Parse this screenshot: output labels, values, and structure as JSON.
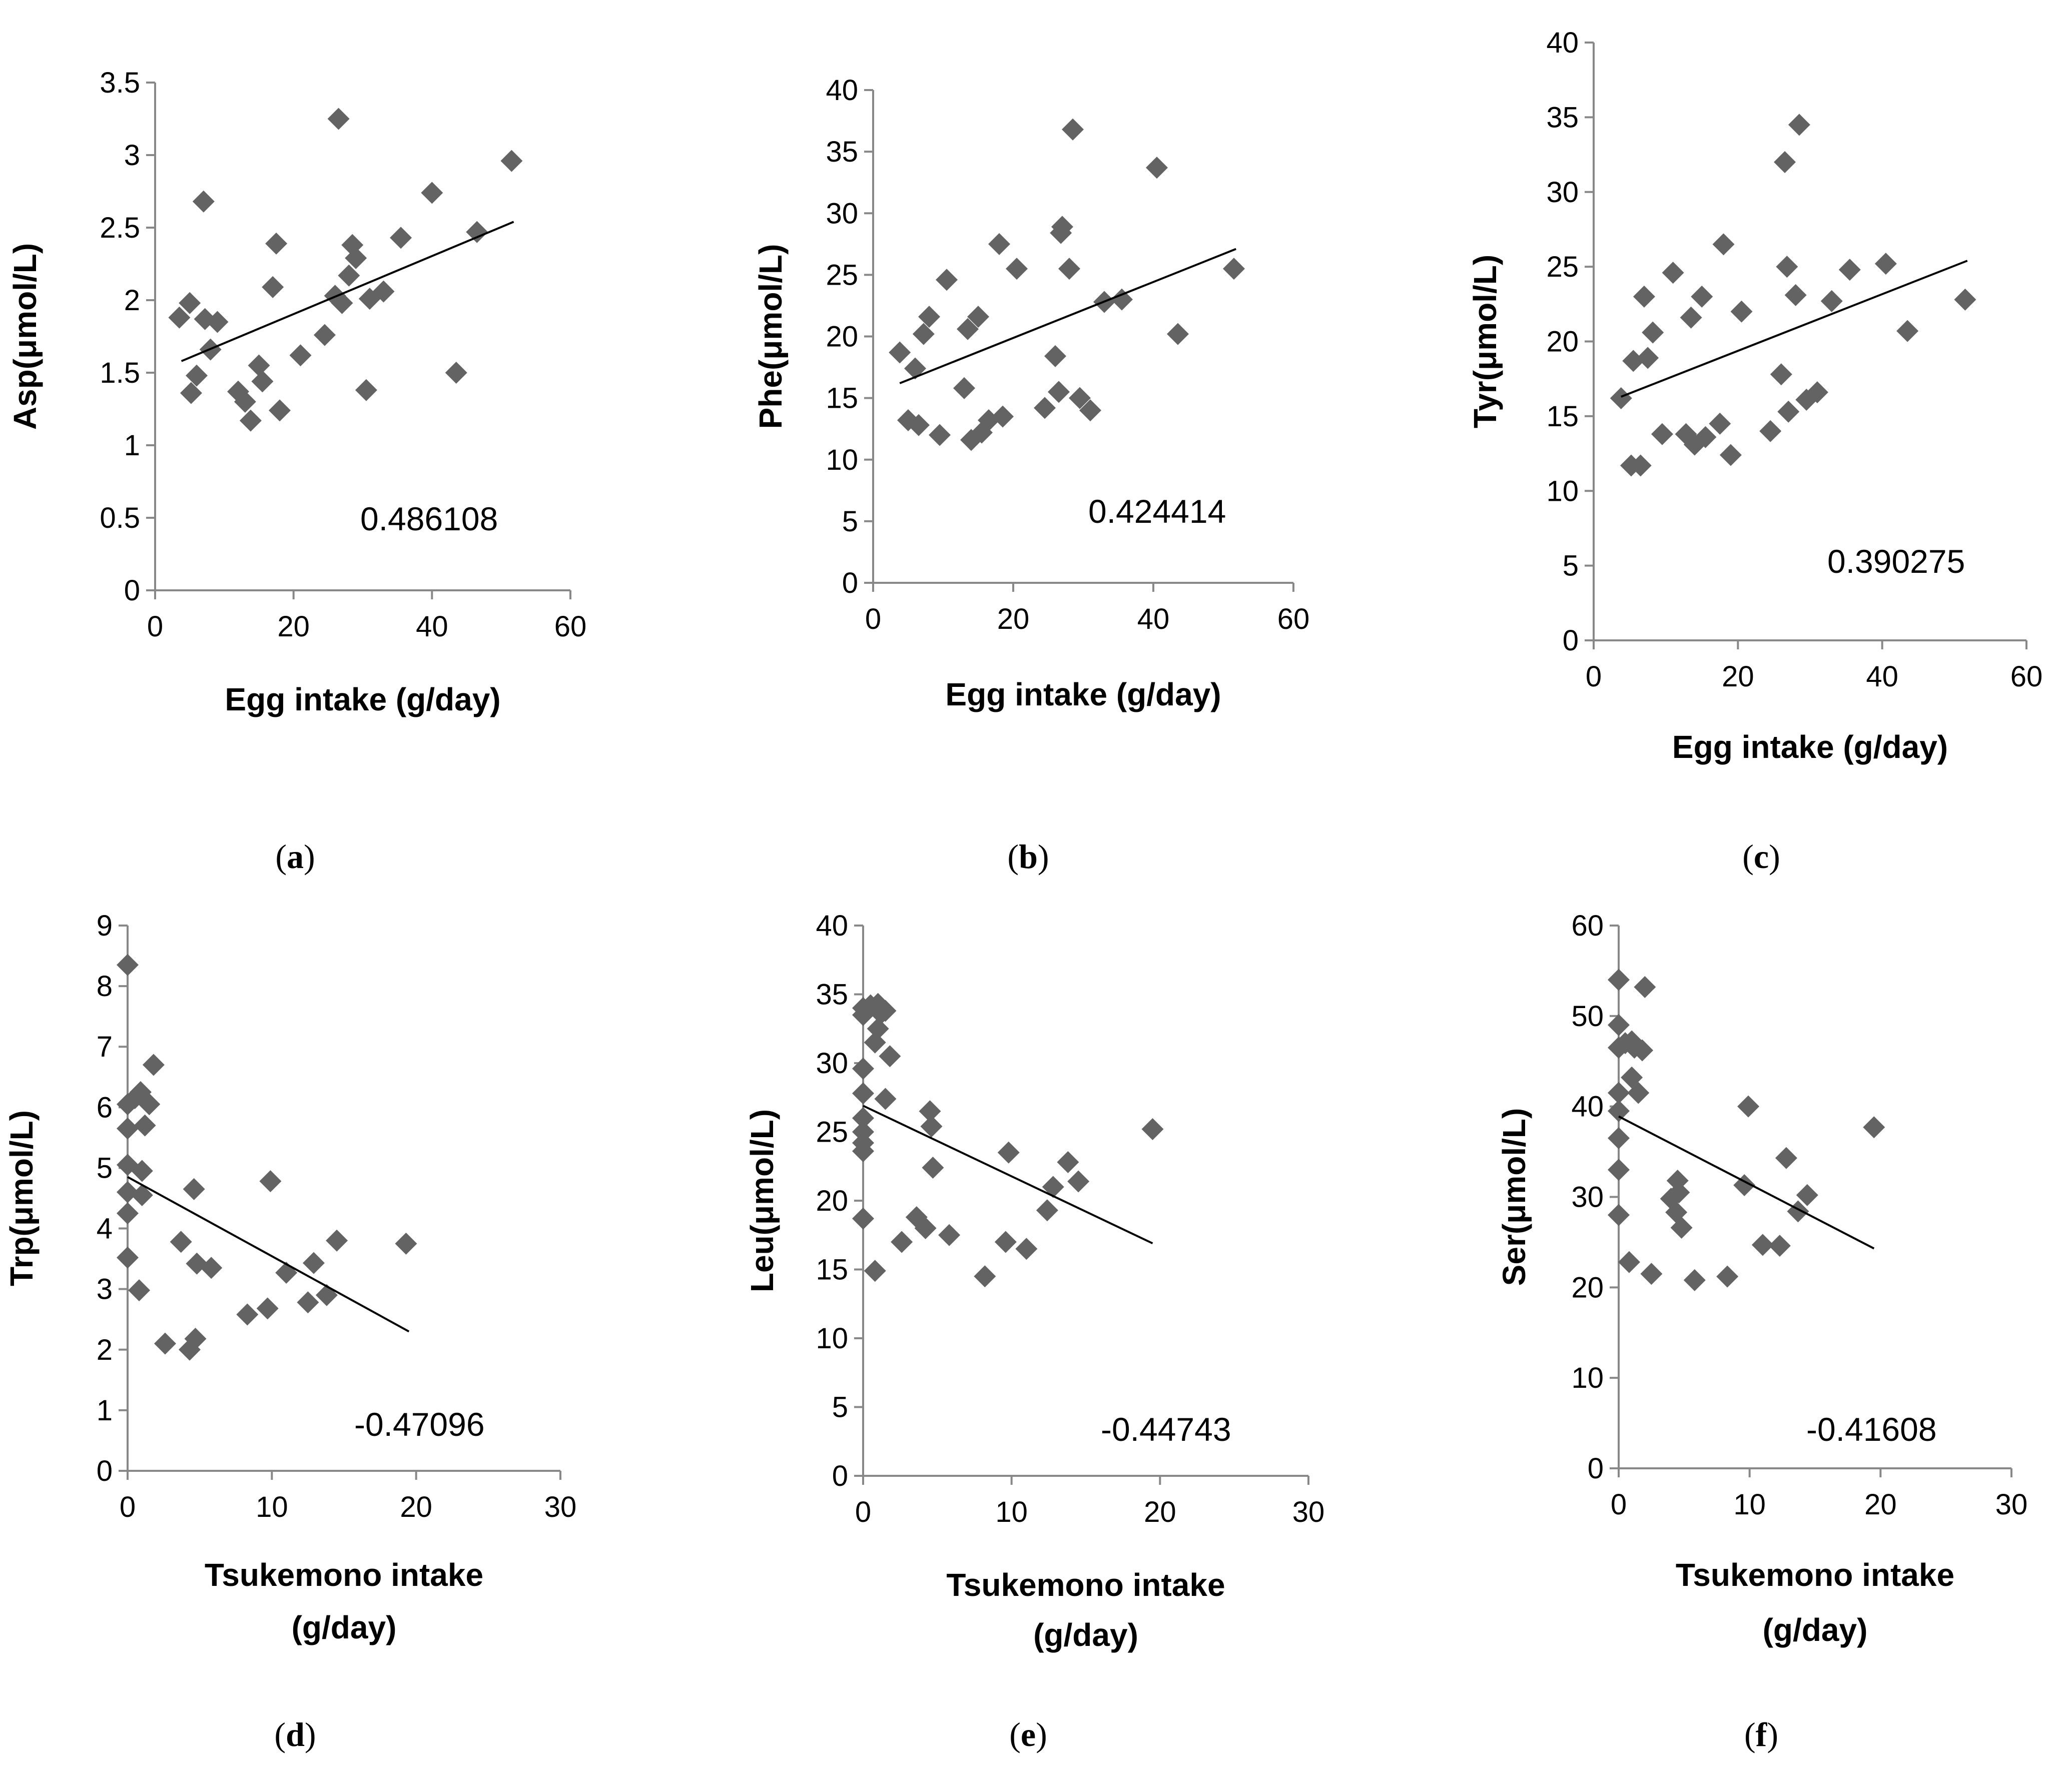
{
  "chart_data": [
    {
      "id": "a",
      "type": "scatter",
      "panel_label": "a",
      "xlabel": "Egg intake (g/day)",
      "ylabel": "Asp(μmol/L)",
      "annotation": "0.486108",
      "xlim": [
        0,
        60
      ],
      "xticks": [
        0,
        20,
        40,
        60
      ],
      "ylim": [
        0,
        3.5
      ],
      "yticks": [
        "0",
        "0.5",
        "1",
        "1.5",
        "2",
        "2.5",
        "3",
        "3.5"
      ],
      "trendline": [
        [
          3.8,
          1.58
        ],
        [
          51.8,
          2.54
        ]
      ],
      "points": [
        [
          3.5,
          1.88
        ],
        [
          5,
          1.98
        ],
        [
          5.2,
          1.36
        ],
        [
          6,
          1.48
        ],
        [
          7,
          2.68
        ],
        [
          7.2,
          1.87
        ],
        [
          8,
          1.66
        ],
        [
          9,
          1.85
        ],
        [
          12,
          1.37
        ],
        [
          13,
          1.3
        ],
        [
          13.8,
          1.17
        ],
        [
          15,
          1.55
        ],
        [
          15.5,
          1.44
        ],
        [
          17,
          2.09
        ],
        [
          17.5,
          2.39
        ],
        [
          18,
          1.24
        ],
        [
          21,
          1.62
        ],
        [
          24.5,
          1.76
        ],
        [
          26,
          2.03
        ],
        [
          26.5,
          3.25
        ],
        [
          27,
          1.98
        ],
        [
          28,
          2.17
        ],
        [
          28.5,
          2.38
        ],
        [
          29,
          2.29
        ],
        [
          30.5,
          1.38
        ],
        [
          31,
          2.01
        ],
        [
          33,
          2.06
        ],
        [
          35.5,
          2.43
        ],
        [
          40,
          2.74
        ],
        [
          43.5,
          1.5
        ],
        [
          46.5,
          2.47
        ],
        [
          51.5,
          2.96
        ]
      ]
    },
    {
      "id": "b",
      "type": "scatter",
      "panel_label": "b",
      "xlabel": "Egg intake (g/day)",
      "ylabel": "Phe(μmol/L)",
      "annotation": "0.424414",
      "xlim": [
        0,
        60
      ],
      "xticks": [
        0,
        20,
        40,
        60
      ],
      "ylim": [
        0,
        40
      ],
      "yticks": [
        "0",
        "5",
        "10",
        "15",
        "20",
        "25",
        "30",
        "35",
        "40"
      ],
      "trendline": [
        [
          3.8,
          16.2
        ],
        [
          51.8,
          27.1
        ]
      ],
      "points": [
        [
          3.8,
          18.7
        ],
        [
          5,
          13.2
        ],
        [
          6,
          17.4
        ],
        [
          6.5,
          12.8
        ],
        [
          7.2,
          20.2
        ],
        [
          8,
          21.6
        ],
        [
          9.5,
          12
        ],
        [
          10.5,
          24.6
        ],
        [
          13,
          15.8
        ],
        [
          13.5,
          20.6
        ],
        [
          14,
          11.6
        ],
        [
          15,
          21.6
        ],
        [
          15.5,
          12.2
        ],
        [
          16.5,
          13.2
        ],
        [
          18,
          27.5
        ],
        [
          18.5,
          13.5
        ],
        [
          20.5,
          25.5
        ],
        [
          24.5,
          14.2
        ],
        [
          26,
          18.4
        ],
        [
          26.5,
          15.5
        ],
        [
          26.8,
          28.4
        ],
        [
          27,
          28.9
        ],
        [
          28,
          25.5
        ],
        [
          28.5,
          36.8
        ],
        [
          29.5,
          15
        ],
        [
          31,
          14
        ],
        [
          33,
          22.8
        ],
        [
          35.5,
          23
        ],
        [
          40.5,
          33.7
        ],
        [
          43.5,
          20.2
        ],
        [
          51.5,
          25.5
        ]
      ]
    },
    {
      "id": "c",
      "type": "scatter",
      "panel_label": "c",
      "xlabel": "Egg intake (g/day)",
      "ylabel": "Tyr(μmol/L)",
      "annotation": "0.390275",
      "xlim": [
        0,
        60
      ],
      "xticks": [
        0,
        20,
        40,
        60
      ],
      "ylim": [
        0,
        40
      ],
      "yticks": [
        "0",
        "5",
        "10",
        "15",
        "20",
        "25",
        "30",
        "35",
        "40"
      ],
      "trendline": [
        [
          3.8,
          16.3
        ],
        [
          51.8,
          25.4
        ]
      ],
      "points": [
        [
          3.8,
          16.2
        ],
        [
          5.2,
          11.7
        ],
        [
          5.5,
          18.7
        ],
        [
          6.5,
          11.7
        ],
        [
          7,
          23
        ],
        [
          7.5,
          18.9
        ],
        [
          8.2,
          20.6
        ],
        [
          9.5,
          13.8
        ],
        [
          11,
          24.6
        ],
        [
          12.8,
          13.8
        ],
        [
          13.5,
          21.6
        ],
        [
          14,
          13.1
        ],
        [
          15,
          23
        ],
        [
          15.5,
          13.6
        ],
        [
          17.5,
          14.5
        ],
        [
          18,
          26.5
        ],
        [
          19,
          12.4
        ],
        [
          20.5,
          22
        ],
        [
          24.5,
          14
        ],
        [
          26,
          17.8
        ],
        [
          26.5,
          32
        ],
        [
          26.8,
          25
        ],
        [
          27,
          15.3
        ],
        [
          28,
          23.1
        ],
        [
          28.5,
          34.5
        ],
        [
          29.5,
          16.1
        ],
        [
          31,
          16.6
        ],
        [
          33,
          22.7
        ],
        [
          35.5,
          24.8
        ],
        [
          40.5,
          25.2
        ],
        [
          43.5,
          20.7
        ],
        [
          51.5,
          22.8
        ]
      ]
    },
    {
      "id": "d",
      "type": "scatter",
      "panel_label": "d",
      "xlabel": "Tsukemono intake (g/day)",
      "xlabel_lines": [
        "Tsukemono intake",
        "(g/day)"
      ],
      "ylabel": "Trp(μmol/L)",
      "annotation": "-0.47096",
      "xlim": [
        0,
        30
      ],
      "xticks": [
        0,
        10,
        20,
        30
      ],
      "ylim": [
        0,
        9
      ],
      "yticks": [
        "0",
        "1",
        "2",
        "3",
        "4",
        "5",
        "6",
        "7",
        "8",
        "9"
      ],
      "trendline": [
        [
          0,
          4.85
        ],
        [
          19.5,
          2.3
        ]
      ],
      "points": [
        [
          0,
          8.35
        ],
        [
          0,
          6.05
        ],
        [
          0,
          5.65
        ],
        [
          0,
          5.05
        ],
        [
          0,
          4.6
        ],
        [
          0,
          4.25
        ],
        [
          0,
          3.52
        ],
        [
          0.5,
          6.15
        ],
        [
          0.8,
          2.98
        ],
        [
          0.9,
          6.25
        ],
        [
          1,
          4.55
        ],
        [
          1,
          4.95
        ],
        [
          1.2,
          5.7
        ],
        [
          1.5,
          6.05
        ],
        [
          1.8,
          6.7
        ],
        [
          2.6,
          2.1
        ],
        [
          3.7,
          3.78
        ],
        [
          4.3,
          2.0
        ],
        [
          4.6,
          4.65
        ],
        [
          4.7,
          2.18
        ],
        [
          4.8,
          3.42
        ],
        [
          5.8,
          3.35
        ],
        [
          8.3,
          2.58
        ],
        [
          9.7,
          2.68
        ],
        [
          9.9,
          4.78
        ],
        [
          11,
          3.27
        ],
        [
          12.5,
          2.78
        ],
        [
          12.9,
          3.43
        ],
        [
          13.8,
          2.9
        ],
        [
          14.5,
          3.8
        ],
        [
          19.3,
          3.75
        ]
      ]
    },
    {
      "id": "e",
      "type": "scatter",
      "panel_label": "e",
      "xlabel": "Tsukemono intake (g/day)",
      "xlabel_lines": [
        "Tsukemono intake",
        "(g/day)"
      ],
      "ylabel": "Leu(μmol/L)",
      "annotation": "-0.44743",
      "xlim": [
        0,
        30
      ],
      "xticks": [
        0,
        10,
        20,
        30
      ],
      "ylim": [
        0,
        40
      ],
      "yticks": [
        "0",
        "5",
        "10",
        "15",
        "20",
        "25",
        "30",
        "35",
        "40"
      ],
      "trendline": [
        [
          0,
          26.9
        ],
        [
          19.5,
          16.9
        ]
      ],
      "points": [
        [
          0,
          34
        ],
        [
          0,
          33.5
        ],
        [
          0,
          29.6
        ],
        [
          0,
          27.8
        ],
        [
          0,
          26
        ],
        [
          0,
          25
        ],
        [
          0,
          24.2
        ],
        [
          0,
          23.6
        ],
        [
          0,
          18.7
        ],
        [
          0.5,
          34.2
        ],
        [
          0.8,
          31.5
        ],
        [
          0.8,
          14.9
        ],
        [
          1,
          34.3
        ],
        [
          1.2,
          33.6
        ],
        [
          1,
          32.5
        ],
        [
          1.5,
          33.8
        ],
        [
          1.5,
          27.4
        ],
        [
          1.8,
          30.5
        ],
        [
          2.6,
          17
        ],
        [
          3.6,
          18.8
        ],
        [
          4.2,
          18
        ],
        [
          4.5,
          26.5
        ],
        [
          4.6,
          25.4
        ],
        [
          4.7,
          22.4
        ],
        [
          5.8,
          17.5
        ],
        [
          8.2,
          14.5
        ],
        [
          9.6,
          17
        ],
        [
          9.8,
          23.5
        ],
        [
          11,
          16.5
        ],
        [
          12.4,
          19.3
        ],
        [
          12.8,
          21
        ],
        [
          13.8,
          22.8
        ],
        [
          14.5,
          21.4
        ],
        [
          19.5,
          25.2
        ]
      ]
    },
    {
      "id": "f",
      "type": "scatter",
      "panel_label": "f",
      "xlabel": "Tsukemono intake (g/day)",
      "xlabel_lines": [
        "Tsukemono intake",
        "(g/day)"
      ],
      "ylabel": "Ser(μmol/L)",
      "annotation": "-0.41608",
      "xlim": [
        0,
        30
      ],
      "xticks": [
        0,
        10,
        20,
        30
      ],
      "ylim": [
        0,
        60
      ],
      "yticks": [
        "0",
        "10",
        "20",
        "30",
        "40",
        "50",
        "60"
      ],
      "trendline": [
        [
          0,
          38.9
        ],
        [
          19.5,
          24.3
        ]
      ],
      "points": [
        [
          0,
          54
        ],
        [
          0,
          49
        ],
        [
          0,
          46.5
        ],
        [
          0,
          41.5
        ],
        [
          0,
          39.5
        ],
        [
          0,
          36.5
        ],
        [
          0,
          33
        ],
        [
          0,
          28
        ],
        [
          0.5,
          47
        ],
        [
          0.8,
          22.8
        ],
        [
          1,
          47.2
        ],
        [
          1,
          43.2
        ],
        [
          1.2,
          46.5
        ],
        [
          1.5,
          41.5
        ],
        [
          1.8,
          46.2
        ],
        [
          2,
          53.2
        ],
        [
          2.5,
          21.5
        ],
        [
          4,
          29.8
        ],
        [
          4.4,
          28.3
        ],
        [
          4.5,
          31.8
        ],
        [
          4.6,
          30.5
        ],
        [
          4.8,
          26.6
        ],
        [
          5.8,
          20.8
        ],
        [
          8.3,
          21.2
        ],
        [
          9.6,
          31.3
        ],
        [
          9.9,
          40
        ],
        [
          11,
          24.7
        ],
        [
          12.3,
          24.6
        ],
        [
          12.8,
          34.3
        ],
        [
          13.7,
          28.4
        ],
        [
          14.4,
          30.2
        ],
        [
          19.5,
          37.7
        ]
      ]
    }
  ]
}
